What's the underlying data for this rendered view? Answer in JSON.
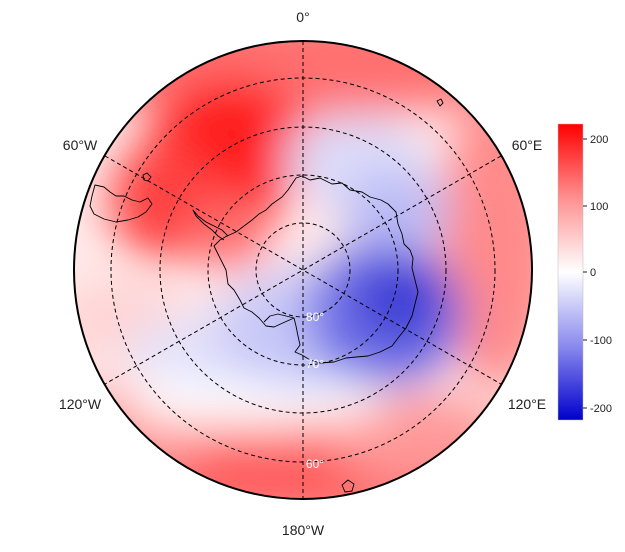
{
  "map": {
    "projection": "south polar stereographic",
    "longitude_labels": {
      "top": "0°",
      "upper_left": "60°W",
      "upper_right": "60°E",
      "lower_left": "120°W",
      "lower_right": "120°E",
      "bottom": "180°W"
    },
    "latitude_labels": {
      "inner": "80°",
      "middle": "70°",
      "outer": "60°"
    },
    "graticule": "dashed",
    "coastline_region": "Antarctica and southern tip of South America"
  },
  "colorbar": {
    "ticks": [
      "200",
      "100",
      "0",
      "-100",
      "-200"
    ],
    "range": [
      -220,
      220
    ],
    "colors": {
      "max": "#ff0000",
      "mid": "#ffffff",
      "min": "#0000cc"
    }
  }
}
